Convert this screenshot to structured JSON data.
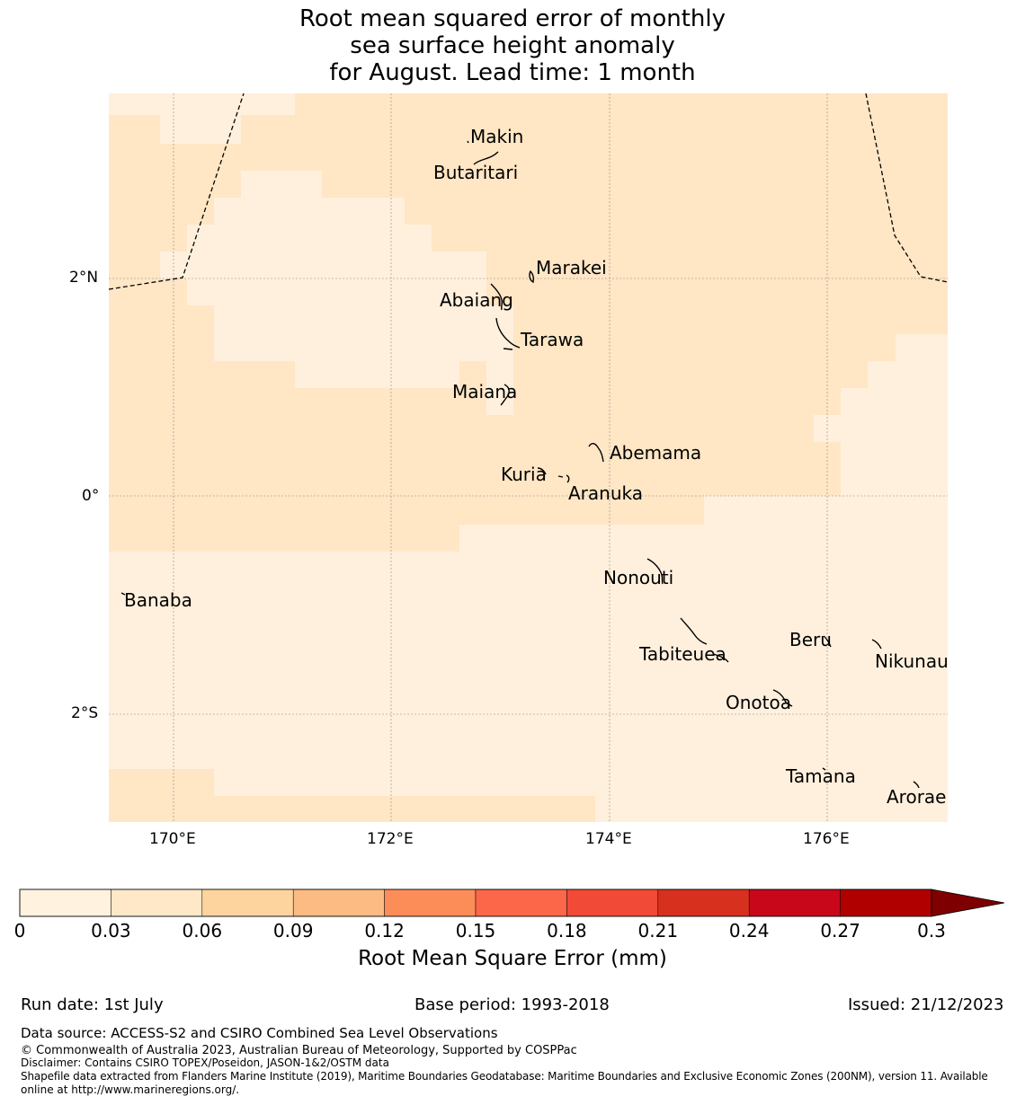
{
  "title": {
    "line1": "Root mean squared error of monthly",
    "line2": "sea surface height anomaly",
    "line3": "for August. Lead time: 1 month"
  },
  "axes": {
    "lon_ticks": [
      "170°E",
      "172°E",
      "174°E",
      "176°E"
    ],
    "lat_ticks": [
      "2°N",
      "0°",
      "2°S"
    ]
  },
  "places": [
    {
      "name": "Makin"
    },
    {
      "name": "Butaritari"
    },
    {
      "name": "Marakei"
    },
    {
      "name": "Abaiang"
    },
    {
      "name": "Tarawa"
    },
    {
      "name": "Maiana"
    },
    {
      "name": "Abemama"
    },
    {
      "name": "Kuria"
    },
    {
      "name": "Aranuka"
    },
    {
      "name": "Nonouti"
    },
    {
      "name": "Banaba"
    },
    {
      "name": "Beru"
    },
    {
      "name": "Tabiteuea"
    },
    {
      "name": "Nikunau"
    },
    {
      "name": "Onotoa"
    },
    {
      "name": "Tamana"
    },
    {
      "name": "Arorae"
    }
  ],
  "colorbar": {
    "ticks": [
      "0",
      "0.03",
      "0.06",
      "0.09",
      "0.12",
      "0.15",
      "0.18",
      "0.21",
      "0.24",
      "0.27",
      "0.3"
    ],
    "colors": [
      "#fff2df",
      "#fee8c8",
      "#fdd49e",
      "#fdbb84",
      "#fc8d59",
      "#fc6749",
      "#f14a36",
      "#d7301f",
      "#c8081a",
      "#b10000",
      "#7f0000"
    ],
    "label": "Root Mean Square Error (mm)"
  },
  "map_colors": {
    "band_lowest": "#fff0dd",
    "band_low": "#ffe6c5",
    "boundary": "#000000",
    "grid": "#888888"
  },
  "footer": {
    "run_date": "Run date: 1st July",
    "base_period": "Base period: 1993-2018",
    "issued": "Issued: 21/12/2023",
    "data_source": "Data source: ACCESS-S2 and CSIRO Combined Sea Level Observations",
    "copyright": "© Commonwealth of Australia 2023, Australian Bureau of Meteorology, Supported by COSPPac",
    "disclaimer": "Disclaimer: Contains CSIRO TOPEX/Poseidon, JASON-1&2/OSTM data",
    "shapefile1": "Shapefile data extracted from Flanders Marine Institute (2019), Maritime Boundaries Geodatabase: Maritime Boundaries and Exclusive Economic Zones (200NM), version 11. Available",
    "shapefile2": "online at http://www.marineregions.org/."
  }
}
